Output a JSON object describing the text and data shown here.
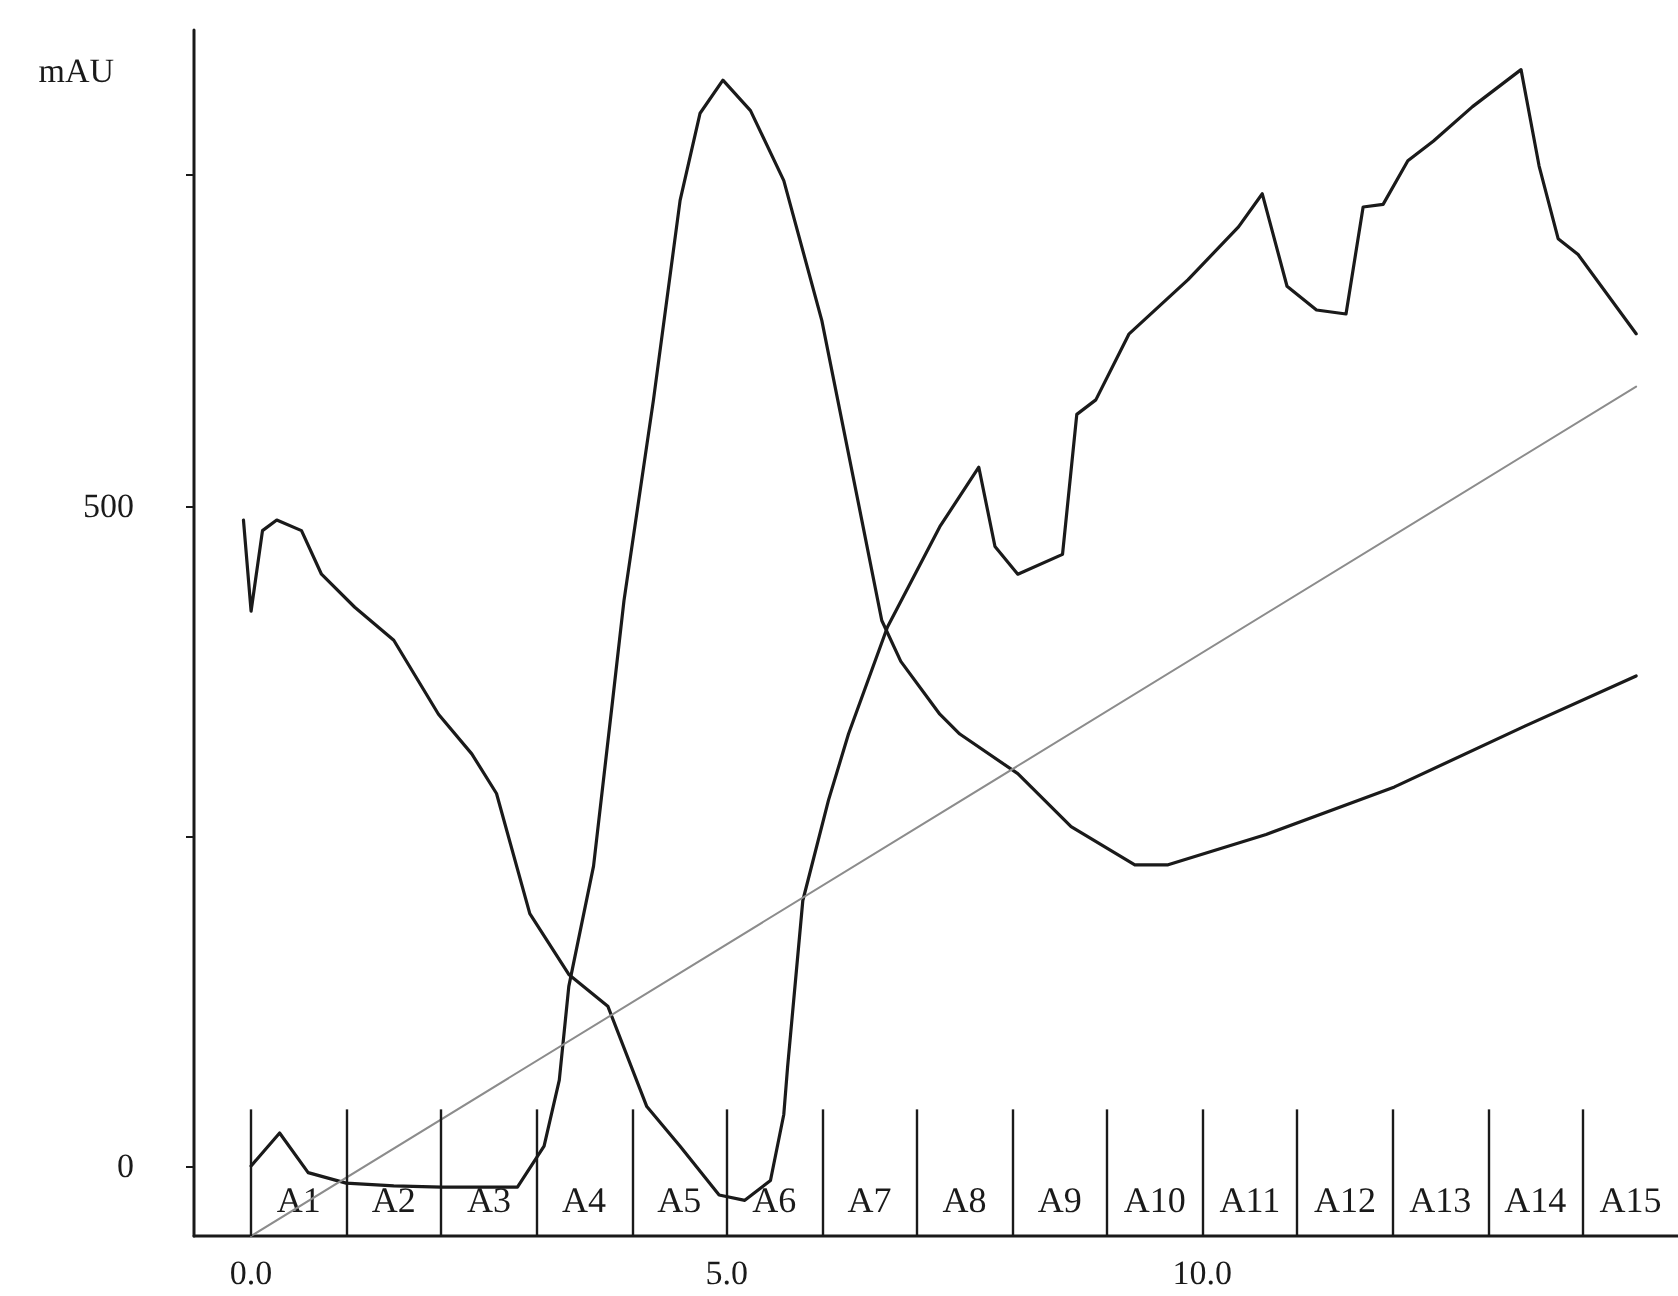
{
  "chart_data": {
    "type": "line",
    "ylabel": "mAU",
    "marker": "none",
    "line_style": "solid",
    "xlim": [
      -0.6,
      15
    ],
    "xticks": [
      {
        "value": 0,
        "label": "0.0"
      },
      {
        "value": 5,
        "label": "5.0"
      },
      {
        "value": 10,
        "label": "10.0"
      }
    ],
    "ylim": [
      -53,
      860
    ],
    "yticks": [
      0,
      {
        "value": 250,
        "label": null
      },
      500,
      {
        "value": 750,
        "label": null
      }
    ],
    "series": [
      {
        "color": "#1a1a1a",
        "x": [
          0,
          0.3,
          0.6,
          1,
          1.5,
          2,
          2.5,
          2.8,
          3.08,
          3.24,
          3.34,
          3.6,
          3.8,
          3.92,
          4.23,
          4.51,
          4.72,
          4.96,
          5.25,
          5.6,
          6.0,
          6.42,
          6.63,
          6.83,
          7.24,
          7.45,
          8.06,
          8.62,
          9.29,
          9.64,
          10.67,
          12.02,
          13.39,
          14.56
        ],
        "values": [
          0,
          25,
          -5,
          -13,
          -15,
          -16,
          -16,
          -16,
          15,
          65,
          136,
          227,
          352,
          428,
          580,
          731,
          797,
          822,
          799,
          746,
          640,
          489,
          413,
          382,
          342,
          327,
          297,
          257,
          228,
          228,
          251,
          287,
          333,
          371
        ]
      },
      {
        "color": "#1a1a1a",
        "x": [
          -0.08,
          0,
          0.12,
          0.27,
          0.53,
          0.74,
          1.09,
          1.5,
          1.97,
          2.32,
          2.58,
          2.93,
          3.34,
          3.75,
          4.16,
          4.51,
          4.92,
          5.19,
          5.46,
          5.6,
          5.64,
          5.8,
          6.07,
          6.28,
          6.69,
          7.24,
          7.65,
          7.82,
          8.06,
          8.53,
          8.68,
          8.88,
          9.23,
          9.85,
          10.38,
          10.63,
          10.89,
          11.2,
          11.51,
          11.69,
          11.9,
          12.16,
          12.43,
          12.84,
          13.35,
          13.54,
          13.74,
          13.95,
          14.56
        ],
        "values": [
          489,
          420,
          481,
          489,
          481,
          448,
          423,
          398,
          342,
          312,
          282,
          191,
          145,
          121,
          45,
          15,
          -22,
          -26,
          -11,
          39,
          75,
          201,
          277,
          327,
          408,
          484,
          529,
          469,
          448,
          463,
          569,
          580,
          630,
          671,
          711,
          736,
          666,
          648,
          645,
          726,
          728,
          761,
          776,
          802,
          830,
          757,
          702,
          690,
          630
        ]
      },
      {
        "color": "#8c8c8c",
        "x": [
          0,
          14.56
        ],
        "values": [
          -53,
          590
        ]
      }
    ],
    "ref_lines": [
      {
        "axis": "x",
        "value": 0,
        "label": null
      },
      {
        "axis": "x",
        "value": 1,
        "label": null
      },
      {
        "axis": "x",
        "value": 2,
        "label": null
      },
      {
        "axis": "x",
        "value": 3,
        "label": null
      },
      {
        "axis": "x",
        "value": 4,
        "label": null
      },
      {
        "axis": "x",
        "value": 5,
        "label": null
      },
      {
        "axis": "x",
        "value": 6,
        "label": null
      },
      {
        "axis": "x",
        "value": 7,
        "label": null
      },
      {
        "axis": "x",
        "value": 8,
        "label": null
      },
      {
        "axis": "x",
        "value": 9,
        "label": null
      },
      {
        "axis": "x",
        "value": 10,
        "label": null
      },
      {
        "axis": "x",
        "value": 11,
        "label": null
      },
      {
        "axis": "x",
        "value": 12,
        "label": null
      },
      {
        "axis": "x",
        "value": 13,
        "label": null
      },
      {
        "axis": "x",
        "value": 14,
        "label": null
      }
    ],
    "annotations": [
      {
        "text": "A1",
        "x": 0.5,
        "y": -26
      },
      {
        "text": "A2",
        "x": 1.5,
        "y": -26
      },
      {
        "text": "A3",
        "x": 2.5,
        "y": -26
      },
      {
        "text": "A4",
        "x": 3.5,
        "y": -26
      },
      {
        "text": "A5",
        "x": 4.5,
        "y": -26
      },
      {
        "text": "A6",
        "x": 5.5,
        "y": -26
      },
      {
        "text": "A7",
        "x": 6.5,
        "y": -26
      },
      {
        "text": "A8",
        "x": 7.5,
        "y": -26
      },
      {
        "text": "A9",
        "x": 8.5,
        "y": -26
      },
      {
        "text": "A10",
        "x": 9.5,
        "y": -26
      },
      {
        "text": "A11",
        "x": 10.5,
        "y": -26
      },
      {
        "text": "A12",
        "x": 11.5,
        "y": -26
      },
      {
        "text": "A13",
        "x": 12.5,
        "y": -26
      },
      {
        "text": "A14",
        "x": 13.5,
        "y": -26
      },
      {
        "text": "A15",
        "x": 14.5,
        "y": -26
      }
    ]
  }
}
